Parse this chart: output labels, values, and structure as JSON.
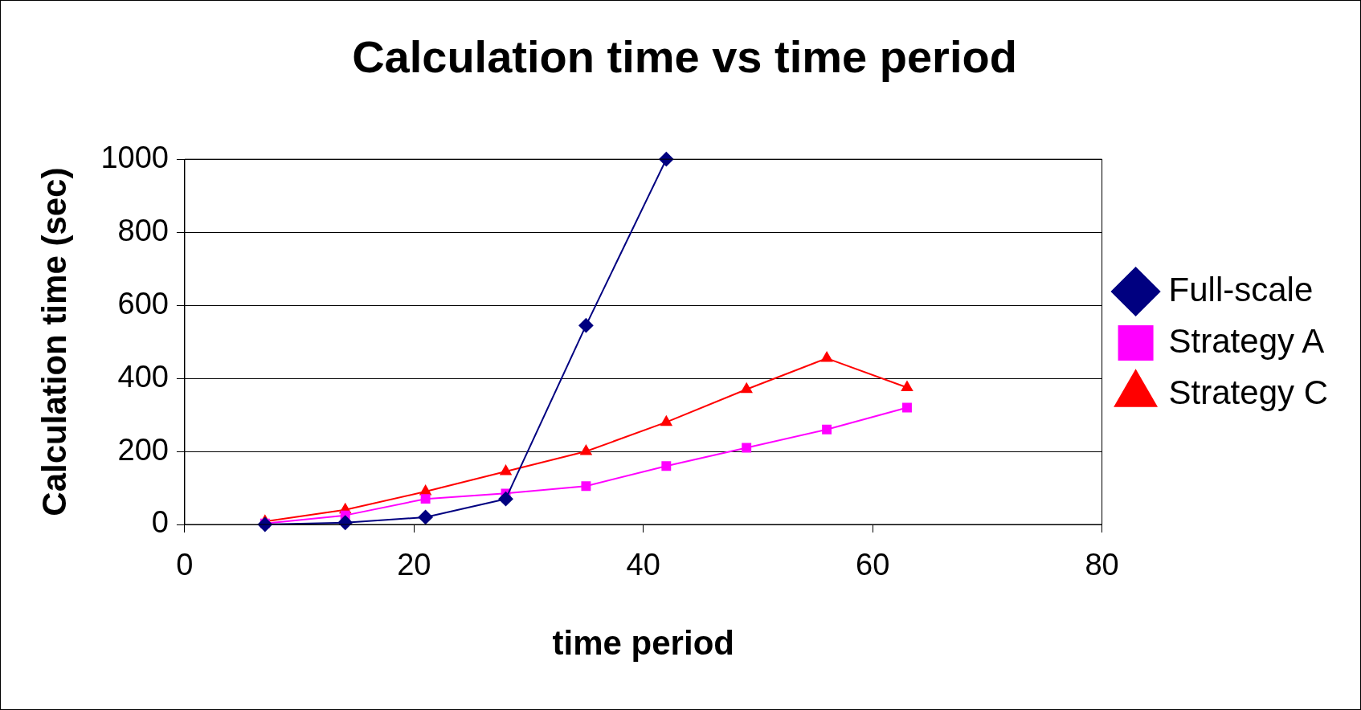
{
  "chart_data": {
    "type": "line",
    "title": "Calculation time vs time period",
    "xlabel": "time period",
    "ylabel": "Calculation time (sec)",
    "xlim": [
      0,
      80
    ],
    "xticks": [
      0,
      20,
      40,
      60,
      80
    ],
    "ylim": [
      0,
      1000
    ],
    "yticks": [
      0,
      200,
      400,
      600,
      800,
      1000
    ],
    "grid": "y",
    "legend": "right",
    "series": [
      {
        "name": "Full-scale",
        "color": "#000080",
        "marker": "diamond",
        "x": [
          7,
          14,
          21,
          28,
          35,
          42
        ],
        "values": [
          0,
          5,
          20,
          70,
          545,
          1000
        ]
      },
      {
        "name": "Strategy A",
        "color": "#ff00ff",
        "marker": "square",
        "x": [
          7,
          14,
          21,
          28,
          35,
          42,
          49,
          56,
          63
        ],
        "values": [
          3,
          25,
          70,
          85,
          105,
          160,
          210,
          260,
          320
        ]
      },
      {
        "name": "Strategy C",
        "color": "#ff0000",
        "marker": "triangle",
        "x": [
          7,
          14,
          21,
          28,
          35,
          42,
          49,
          56,
          63
        ],
        "values": [
          8,
          40,
          90,
          145,
          200,
          280,
          370,
          455,
          375
        ]
      }
    ]
  }
}
